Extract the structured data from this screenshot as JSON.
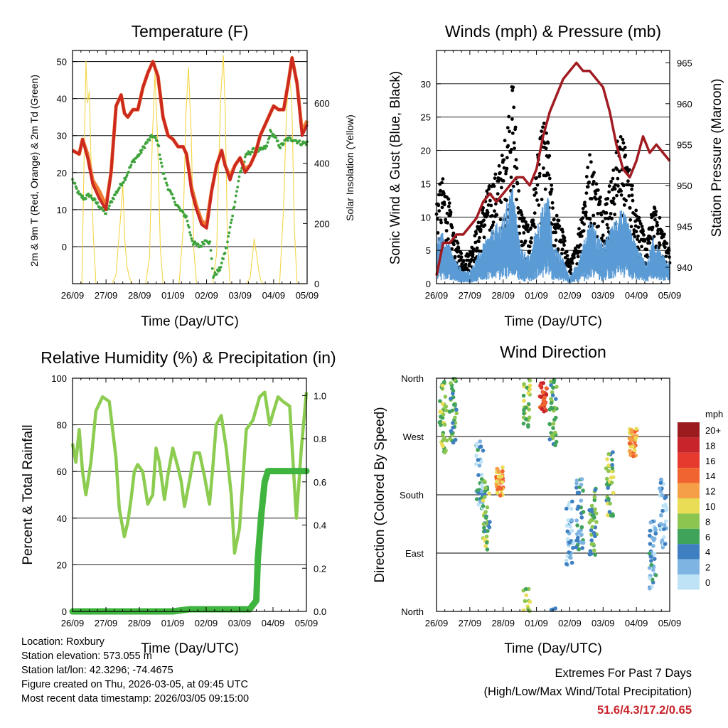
{
  "colors": {
    "temp2m": "#cc2a20",
    "temp9m": "#f07a30",
    "dewpoint": "#3fa33c",
    "solar": "#f5d547",
    "gust": "#000000",
    "wind": "#5b9bd5",
    "pressure": "#a01c22",
    "rh": "#8ccc50",
    "precip": "#3fb43e",
    "extremes": "#c8242b"
  },
  "info": {
    "location": "Location: Roxbury",
    "elevation": "Station elevation: 573.055 m",
    "latlon": "Station lat/lon: 42.3296; -74.4675",
    "created": "Figure created on Thu, 2026-03-05, at 09:45 UTC",
    "recent": "Most recent data timestamp: 2026/03/05 09:15:00"
  },
  "extremes": {
    "heading": "Extremes For Past 7 Days",
    "subheading": "(High/Low/Max Wind/Total Precipitation)",
    "values": "51.6/4.3/17.2/0.65"
  },
  "chart_data": [
    {
      "type": "line",
      "title": "Temperature (F)",
      "xlabel": "Time (Day/UTC)",
      "ylabel": "2m & 9m T (Red, Orange) & 2m Td (Green)",
      "y2label": "Solar Insolation (Yellow)",
      "x_ticks": [
        "26/09",
        "27/09",
        "28/09",
        "01/09",
        "02/09",
        "03/09",
        "04/09",
        "05/09"
      ],
      "xlim": [
        0,
        7
      ],
      "ylim": [
        -10,
        53
      ],
      "y_ticks": [
        0,
        10,
        20,
        30,
        40,
        50
      ],
      "y2lim": [
        0,
        775
      ],
      "y2_ticks": [
        0,
        200,
        400,
        600
      ],
      "grid": true,
      "series": [
        {
          "name": "2m T",
          "color_key": "temp2m",
          "x": [
            0,
            0.2,
            0.3,
            0.45,
            0.6,
            0.8,
            1.0,
            1.15,
            1.3,
            1.45,
            1.55,
            1.65,
            1.8,
            1.95,
            2.1,
            2.25,
            2.4,
            2.55,
            2.7,
            2.85,
            3.0,
            3.15,
            3.3,
            3.4,
            3.55,
            3.7,
            3.85,
            4.0,
            4.05,
            4.15,
            4.3,
            4.45,
            4.55,
            4.7,
            4.85,
            5.0,
            5.15,
            5.3,
            5.45,
            5.6,
            5.75,
            5.9,
            6.0,
            6.15,
            6.3,
            6.45,
            6.55,
            6.7,
            6.85,
            7.0
          ],
          "values": [
            26,
            25,
            29,
            24,
            17,
            13,
            10,
            20,
            38,
            41,
            36,
            35,
            37,
            37,
            43,
            47,
            50,
            46,
            35,
            30,
            29,
            27,
            27,
            25,
            15,
            10,
            6,
            5,
            8,
            15,
            22,
            26,
            22,
            18,
            22,
            24,
            20,
            22,
            25,
            30,
            33,
            36,
            38,
            37,
            37,
            45,
            51,
            44,
            30,
            33
          ]
        },
        {
          "name": "9m T",
          "color_key": "temp9m",
          "x": [
            0,
            0.2,
            0.3,
            0.45,
            0.6,
            0.8,
            1.0,
            1.15,
            1.3,
            1.45,
            1.55,
            1.65,
            1.8,
            1.95,
            2.1,
            2.25,
            2.4,
            2.55,
            2.7,
            2.85,
            3.0,
            3.15,
            3.3,
            3.4,
            3.55,
            3.7,
            3.85,
            4.0,
            4.05,
            4.15,
            4.3,
            4.45,
            4.55,
            4.7,
            4.85,
            5.0,
            5.15,
            5.3,
            5.45,
            5.6,
            5.75,
            5.9,
            6.0,
            6.15,
            6.3,
            6.45,
            6.55,
            6.7,
            6.85,
            7.0
          ],
          "values": [
            26,
            25,
            29,
            25,
            18,
            15,
            11,
            20,
            38,
            41,
            36,
            35,
            37,
            37,
            43,
            47,
            50,
            46,
            35,
            30,
            29,
            27,
            27,
            25,
            16,
            11,
            7,
            6,
            9,
            15,
            22,
            26,
            22,
            19,
            22,
            24,
            21,
            22,
            25,
            30,
            33,
            36,
            38,
            37,
            37,
            45,
            51,
            44,
            31,
            34
          ]
        },
        {
          "name": "2m Td",
          "color_key": "dewpoint",
          "x": [
            0,
            0.2,
            0.35,
            0.5,
            0.7,
            0.9,
            1.0,
            1.2,
            1.4,
            1.6,
            1.8,
            2.0,
            2.2,
            2.4,
            2.55,
            2.7,
            2.85,
            3.0,
            3.2,
            3.4,
            3.5,
            3.6,
            3.8,
            4.0,
            4.1,
            4.2,
            4.4,
            4.6,
            4.8,
            5.0,
            5.2,
            5.4,
            5.6,
            5.8,
            5.9,
            6.0,
            6.2,
            6.4,
            6.6,
            6.8,
            7.0
          ],
          "values": [
            18,
            14,
            13,
            14,
            12,
            10,
            9,
            13,
            16,
            19,
            23,
            25,
            28,
            30,
            28,
            20,
            16,
            13,
            10,
            8,
            4,
            1,
            0,
            2,
            1,
            -8,
            -6,
            0,
            10,
            20,
            25,
            26,
            26,
            27,
            31,
            30,
            27,
            29,
            29,
            28,
            28
          ]
        }
      ],
      "solar_series": {
        "name": "Solar Insolation",
        "color_key": "solar",
        "x": [
          0,
          0.28,
          0.34,
          0.4,
          0.45,
          0.5,
          0.56,
          0.62,
          0.7,
          0.78,
          1.18,
          1.3,
          1.36,
          1.44,
          1.5,
          1.56,
          1.62,
          1.7,
          1.78,
          2.18,
          2.3,
          2.38,
          2.46,
          2.54,
          2.62,
          2.7,
          3.18,
          3.3,
          3.38,
          3.46,
          3.54,
          3.62,
          3.7,
          4.18,
          4.3,
          4.36,
          4.42,
          4.5,
          4.56,
          4.62,
          4.7,
          5.18,
          5.3,
          5.36,
          5.42,
          5.5,
          5.56,
          5.62,
          5.7,
          6.18,
          6.3,
          6.38,
          6.46,
          6.54,
          6.62,
          6.7,
          7.0
        ],
        "values": [
          0,
          0,
          380,
          740,
          600,
          640,
          380,
          160,
          0,
          0,
          0,
          30,
          120,
          230,
          330,
          150,
          60,
          20,
          0,
          0,
          90,
          480,
          700,
          480,
          120,
          0,
          0,
          180,
          550,
          720,
          500,
          110,
          0,
          0,
          100,
          380,
          620,
          760,
          560,
          150,
          0,
          0,
          20,
          80,
          150,
          90,
          40,
          10,
          0,
          0,
          260,
          560,
          700,
          620,
          180,
          0,
          0
        ]
      }
    },
    {
      "type": "scatter",
      "title": "Winds (mph) & Pressure (mb)",
      "xlabel": "Time (Day/UTC)",
      "ylabel": "Sonic Wind & Gust (Blue, Black)",
      "y2label": "Station Pressure (Maroon)",
      "x_ticks": [
        "26/09",
        "27/09",
        "28/09",
        "01/09",
        "02/09",
        "03/09",
        "04/09",
        "05/09"
      ],
      "xlim": [
        0,
        7
      ],
      "ylim": [
        0,
        35
      ],
      "y_ticks": [
        0,
        5,
        10,
        15,
        20,
        25,
        30
      ],
      "y2lim": [
        938,
        966.5
      ],
      "y2_ticks": [
        940,
        945,
        950,
        955,
        960,
        965
      ],
      "grid": true,
      "gust_envelope": {
        "name": "Gust",
        "color_key": "gust",
        "x": [
          0,
          0.2,
          0.4,
          0.5,
          0.8,
          1.0,
          1.3,
          1.5,
          1.8,
          2.0,
          2.2,
          2.3,
          2.5,
          2.8,
          3.0,
          3.2,
          3.35,
          3.5,
          3.8,
          4.0,
          4.2,
          4.4,
          4.6,
          5.0,
          5.3,
          5.5,
          5.7,
          6.0,
          6.3,
          6.5,
          6.7,
          7.0
        ],
        "values": [
          14,
          16,
          12,
          8,
          4,
          5,
          10,
          14,
          17,
          20,
          28,
          31,
          12,
          8,
          18,
          25,
          22,
          12,
          8,
          3,
          6,
          13,
          20,
          12,
          17,
          24,
          20,
          12,
          6,
          12,
          10,
          5
        ]
      },
      "wind_envelope": {
        "name": "Sonic Wind",
        "color_key": "wind",
        "x": [
          0,
          0.2,
          0.4,
          0.5,
          0.8,
          1.0,
          1.3,
          1.5,
          1.8,
          2.0,
          2.2,
          2.3,
          2.5,
          2.8,
          3.0,
          3.2,
          3.35,
          3.5,
          3.8,
          4.0,
          4.2,
          4.4,
          4.6,
          5.0,
          5.3,
          5.5,
          5.7,
          6.0,
          6.3,
          6.5,
          6.7,
          7.0
        ],
        "values": [
          7,
          8,
          6,
          4,
          2,
          2,
          5,
          7,
          9,
          10,
          14,
          15,
          6,
          4,
          9,
          12,
          14,
          6,
          4,
          1,
          3,
          6,
          10,
          6,
          9,
          12,
          10,
          6,
          3,
          7,
          5,
          3
        ]
      },
      "pressure_series": {
        "name": "Station Pressure",
        "color_key": "pressure",
        "x": [
          0,
          0.2,
          0.4,
          0.6,
          0.8,
          1.0,
          1.2,
          1.4,
          1.6,
          1.8,
          2.0,
          2.2,
          2.4,
          2.6,
          2.8,
          3.0,
          3.2,
          3.4,
          3.6,
          3.8,
          4.0,
          4.2,
          4.4,
          4.6,
          4.8,
          5.0,
          5.2,
          5.4,
          5.6,
          5.8,
          6.0,
          6.2,
          6.4,
          6.6,
          6.8,
          7.0
        ],
        "values": [
          939,
          943,
          943,
          944,
          944,
          945,
          946,
          948,
          949,
          948,
          949,
          950,
          951,
          951,
          950,
          952,
          956,
          959,
          961,
          963,
          964,
          965,
          964,
          964,
          963,
          962,
          959,
          955,
          952,
          951,
          953,
          956,
          954,
          955,
          954,
          953
        ]
      }
    },
    {
      "type": "line",
      "title": "Relative Humidity (%) & Precipitation (in)",
      "xlabel": "Time (Day/UTC)",
      "ylabel": "Percent & Total Rainfall",
      "x_ticks": [
        "26/09",
        "27/09",
        "28/09",
        "01/09",
        "02/09",
        "03/09",
        "04/09",
        "05/09"
      ],
      "xlim": [
        0,
        7
      ],
      "ylim": [
        0,
        100
      ],
      "y_ticks": [
        0,
        20,
        40,
        60,
        80,
        100
      ],
      "y2lim": [
        0,
        1.08
      ],
      "y2_ticks": [
        "0.0",
        "0.2",
        "0.4",
        "0.6",
        "0.8",
        "1.0"
      ],
      "grid": true,
      "series": [
        {
          "name": "Relative Humidity",
          "color_key": "rh",
          "x": [
            0,
            0.1,
            0.2,
            0.3,
            0.4,
            0.55,
            0.7,
            0.9,
            1.1,
            1.3,
            1.4,
            1.55,
            1.65,
            1.75,
            1.85,
            1.95,
            2.1,
            2.25,
            2.4,
            2.5,
            2.6,
            2.75,
            2.85,
            3.0,
            3.15,
            3.25,
            3.35,
            3.5,
            3.65,
            3.8,
            3.95,
            4.1,
            4.2,
            4.3,
            4.45,
            4.6,
            4.75,
            4.85,
            5.0,
            5.2,
            5.4,
            5.6,
            5.75,
            5.9,
            6.0,
            6.15,
            6.3,
            6.5,
            6.7,
            6.85,
            7.0
          ],
          "values": [
            72,
            64,
            78,
            60,
            50,
            64,
            86,
            92,
            90,
            66,
            44,
            32,
            38,
            48,
            60,
            63,
            60,
            46,
            50,
            70,
            64,
            48,
            58,
            70,
            62,
            56,
            45,
            56,
            68,
            68,
            58,
            46,
            62,
            80,
            84,
            70,
            50,
            25,
            36,
            78,
            82,
            92,
            94,
            80,
            85,
            92,
            90,
            88,
            40,
            70,
            94
          ]
        },
        {
          "name": "Total Rainfall",
          "color_key": "precip",
          "axis": "y2",
          "x": [
            0,
            0.5,
            1.0,
            2.0,
            3.0,
            3.5,
            4.0,
            4.5,
            5.0,
            5.3,
            5.5,
            5.55,
            5.65,
            5.75,
            5.85,
            6.0,
            6.5,
            7.0
          ],
          "values": [
            0,
            0,
            0,
            0,
            0,
            0.01,
            0.01,
            0.01,
            0.01,
            0.01,
            0.05,
            0.25,
            0.45,
            0.6,
            0.65,
            0.65,
            0.65,
            0.65
          ]
        }
      ]
    },
    {
      "type": "scatter",
      "title": "Wind Direction",
      "xlabel": "Time (Day/UTC)",
      "ylabel": "Direction (Colored By Speed)",
      "x_ticks": [
        "26/09",
        "27/09",
        "28/09",
        "01/09",
        "02/09",
        "03/09",
        "04/09",
        "05/09"
      ],
      "xlim": [
        0,
        7
      ],
      "ylim": [
        0,
        360
      ],
      "y_ticks": [
        "North",
        "East",
        "South",
        "West",
        "North"
      ],
      "y_tick_values": [
        0,
        90,
        180,
        270,
        360
      ],
      "grid": true,
      "colorbar": {
        "title": "mph",
        "labels": [
          "20+",
          "18",
          "16",
          "14",
          "12",
          "10",
          "8",
          "6",
          "4",
          "2",
          "0"
        ],
        "colors": [
          "#9b1b1e",
          "#c8242b",
          "#e63a2e",
          "#f0652f",
          "#f5a047",
          "#e8dd55",
          "#8cc651",
          "#3fa35a",
          "#3d7fc0",
          "#7db4e2",
          "#bee3f7"
        ]
      },
      "clusters": [
        {
          "x": 0.2,
          "dir": 300,
          "speed": 8
        },
        {
          "x": 0.5,
          "dir": 310,
          "speed": 6
        },
        {
          "x": 1.3,
          "dir": 210,
          "speed": 3
        },
        {
          "x": 1.5,
          "dir": 150,
          "speed": 7
        },
        {
          "x": 1.9,
          "dir": 200,
          "speed": 12
        },
        {
          "x": 2.7,
          "dir": 340,
          "speed": 8
        },
        {
          "x": 3.2,
          "dir": 330,
          "speed": 16
        },
        {
          "x": 3.5,
          "dir": 310,
          "speed": 6
        },
        {
          "x": 4.0,
          "dir": 120,
          "speed": 2
        },
        {
          "x": 4.3,
          "dir": 150,
          "speed": 4
        },
        {
          "x": 4.7,
          "dir": 140,
          "speed": 6
        },
        {
          "x": 5.2,
          "dir": 200,
          "speed": 7
        },
        {
          "x": 5.9,
          "dir": 260,
          "speed": 12
        },
        {
          "x": 6.5,
          "dir": 90,
          "speed": 3
        },
        {
          "x": 6.8,
          "dir": 150,
          "speed": 2
        }
      ]
    }
  ]
}
